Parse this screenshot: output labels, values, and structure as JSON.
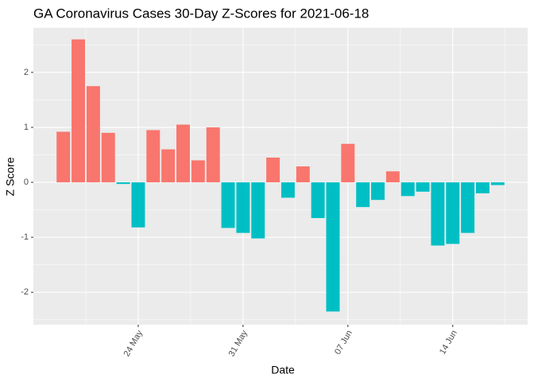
{
  "chart_data": {
    "type": "bar",
    "title": "GA Coronavirus Cases 30-Day Z-Scores for 2021-06-18",
    "x_label": "Date",
    "y_label": "Z Score",
    "x": [
      "2021-05-19",
      "2021-05-20",
      "2021-05-21",
      "2021-05-22",
      "2021-05-23",
      "2021-05-24",
      "2021-05-25",
      "2021-05-26",
      "2021-05-27",
      "2021-05-28",
      "2021-05-29",
      "2021-05-30",
      "2021-05-31",
      "2021-06-01",
      "2021-06-02",
      "2021-06-03",
      "2021-06-04",
      "2021-06-05",
      "2021-06-06",
      "2021-06-07",
      "2021-06-08",
      "2021-06-09",
      "2021-06-10",
      "2021-06-11",
      "2021-06-12",
      "2021-06-13",
      "2021-06-14",
      "2021-06-15",
      "2021-06-16",
      "2021-06-17"
    ],
    "values": [
      0.92,
      2.6,
      1.75,
      0.9,
      -0.03,
      -0.82,
      0.95,
      0.6,
      1.05,
      0.4,
      1.0,
      -0.83,
      -0.92,
      -1.02,
      0.45,
      -0.28,
      0.29,
      -0.65,
      -2.35,
      0.7,
      -0.45,
      -0.32,
      0.2,
      -0.25,
      -0.17,
      -1.15,
      -1.12,
      -0.92,
      -0.2,
      -0.05
    ],
    "positive_color": "#F8766D",
    "negative_color": "#00BFC4",
    "xlim": [
      "2021-05-17",
      "2021-06-19"
    ],
    "xticks": [
      {
        "value": "2021-05-24",
        "label": "24 May"
      },
      {
        "value": "2021-05-31",
        "label": "31 May"
      },
      {
        "value": "2021-06-07",
        "label": "07 Jun"
      },
      {
        "value": "2021-06-14",
        "label": "14 Jun"
      }
    ],
    "ylim": [
      -2.59,
      2.81
    ],
    "yticks": [
      -2,
      -1,
      0,
      1,
      2
    ],
    "grid": true
  }
}
